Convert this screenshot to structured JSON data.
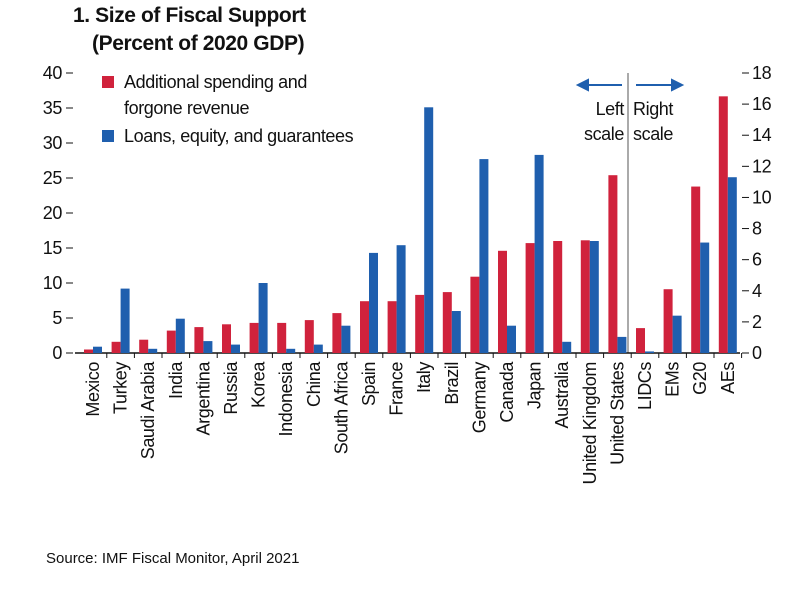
{
  "chart_data": {
    "type": "bar",
    "title": "1. Size of Fiscal Support",
    "subtitle": "(Percent of 2020 GDP)",
    "source": "Source: IMF Fiscal Monitor, April 2021",
    "annotations": [
      "Left scale",
      "Right scale"
    ],
    "categories": [
      "Mexico",
      "Turkey",
      "Saudi Arabia",
      "India",
      "Argentina",
      "Russia",
      "Korea",
      "Indonesia",
      "China",
      "South Africa",
      "Spain",
      "France",
      "Italy",
      "Brazil",
      "Germany",
      "Canada",
      "Japan",
      "Australia",
      "United Kingdom",
      "United States",
      "LIDCs",
      "EMs",
      "G20",
      "AEs"
    ],
    "series": [
      {
        "name": "Additional spending and forgone revenue",
        "color": "#d0223c",
        "values": [
          0.5,
          1.6,
          1.9,
          3.2,
          3.7,
          4.1,
          4.3,
          4.3,
          4.7,
          5.7,
          7.4,
          7.4,
          8.3,
          8.7,
          10.9,
          14.6,
          15.7,
          16.0,
          16.1,
          25.4,
          null,
          null,
          null,
          null
        ]
      },
      {
        "name": "Loans, equity, and guarantees",
        "color": "#1f5fae",
        "values": [
          0.9,
          9.2,
          0.6,
          4.9,
          1.7,
          1.2,
          10.0,
          0.6,
          1.2,
          3.9,
          14.3,
          15.4,
          35.1,
          6.0,
          27.7,
          3.9,
          28.3,
          1.6,
          16.0,
          2.3,
          null,
          null,
          null,
          null
        ]
      },
      {
        "color": "#d0223c",
        "axis": "y2",
        "values": [
          null,
          null,
          null,
          null,
          null,
          null,
          null,
          null,
          null,
          null,
          null,
          null,
          null,
          null,
          null,
          null,
          null,
          null,
          null,
          null,
          1.6,
          4.1,
          10.7,
          16.5
        ]
      },
      {
        "color": "#1f5fae",
        "axis": "y2",
        "values": [
          null,
          null,
          null,
          null,
          null,
          null,
          null,
          null,
          null,
          null,
          null,
          null,
          null,
          null,
          null,
          null,
          null,
          null,
          null,
          null,
          0.1,
          2.4,
          7.1,
          11.3
        ]
      }
    ],
    "ylim": [
      0,
      40
    ],
    "yticks": [
      0,
      5,
      10,
      15,
      20,
      25,
      30,
      35,
      40
    ],
    "y2lim": [
      0,
      18
    ],
    "y2ticks": [
      0,
      2,
      4,
      6,
      8,
      10,
      12,
      14,
      16,
      18
    ]
  }
}
